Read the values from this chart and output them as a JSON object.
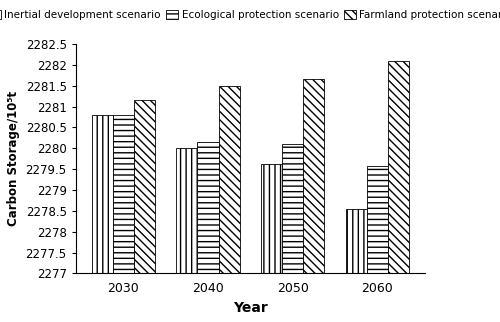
{
  "years": [
    2030,
    2040,
    2050,
    2060
  ],
  "scenarios": [
    "Inertial development scenario",
    "Ecological protection scenario",
    "Farmland protection scenario"
  ],
  "values": {
    "Inertial development scenario": [
      2280.8,
      2280.0,
      2279.63,
      2278.55
    ],
    "Ecological protection scenario": [
      2280.8,
      2280.15,
      2280.1,
      2279.57
    ],
    "Farmland protection scenario": [
      2281.15,
      2281.5,
      2281.65,
      2282.1
    ]
  },
  "ylim": [
    2277,
    2282.5
  ],
  "ybase": 2277,
  "yticks": [
    2277,
    2277.5,
    2278,
    2278.5,
    2279,
    2279.5,
    2280,
    2280.5,
    2281,
    2281.5,
    2282,
    2282.5
  ],
  "xlabel": "Year",
  "ylabel": "Carbon Storage/10⁵t",
  "bar_width": 0.25,
  "hatch_patterns": [
    "|||",
    "---",
    "\\\\\\\\"
  ],
  "facecolor": "white",
  "edgecolor": "black",
  "axis_fontsize": 9,
  "legend_fontsize": 7.5
}
